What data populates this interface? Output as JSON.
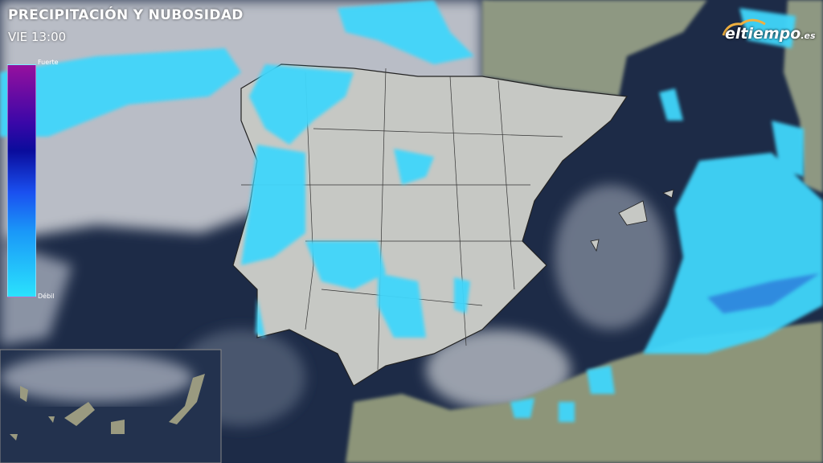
{
  "header": {
    "title": "PRECIPITACIÓN Y NUBOSIDAD",
    "time": "VIE 13:00"
  },
  "legend": {
    "max_label": "Fuerte",
    "min_label": "Débil",
    "colors": [
      "#96109e",
      "#0a0c9c",
      "#1a50f0",
      "#2ae2fd"
    ]
  },
  "logo": {
    "name": "eltiempo",
    "suffix": ".es",
    "arc_color": "#f0b040"
  },
  "colors": {
    "sea": "#1d2b47",
    "land": "#c6c8c4",
    "clouds": "#b9bdc6",
    "precip": "#3fd6fb",
    "africa": "#8d9579",
    "borders": "#222222"
  }
}
